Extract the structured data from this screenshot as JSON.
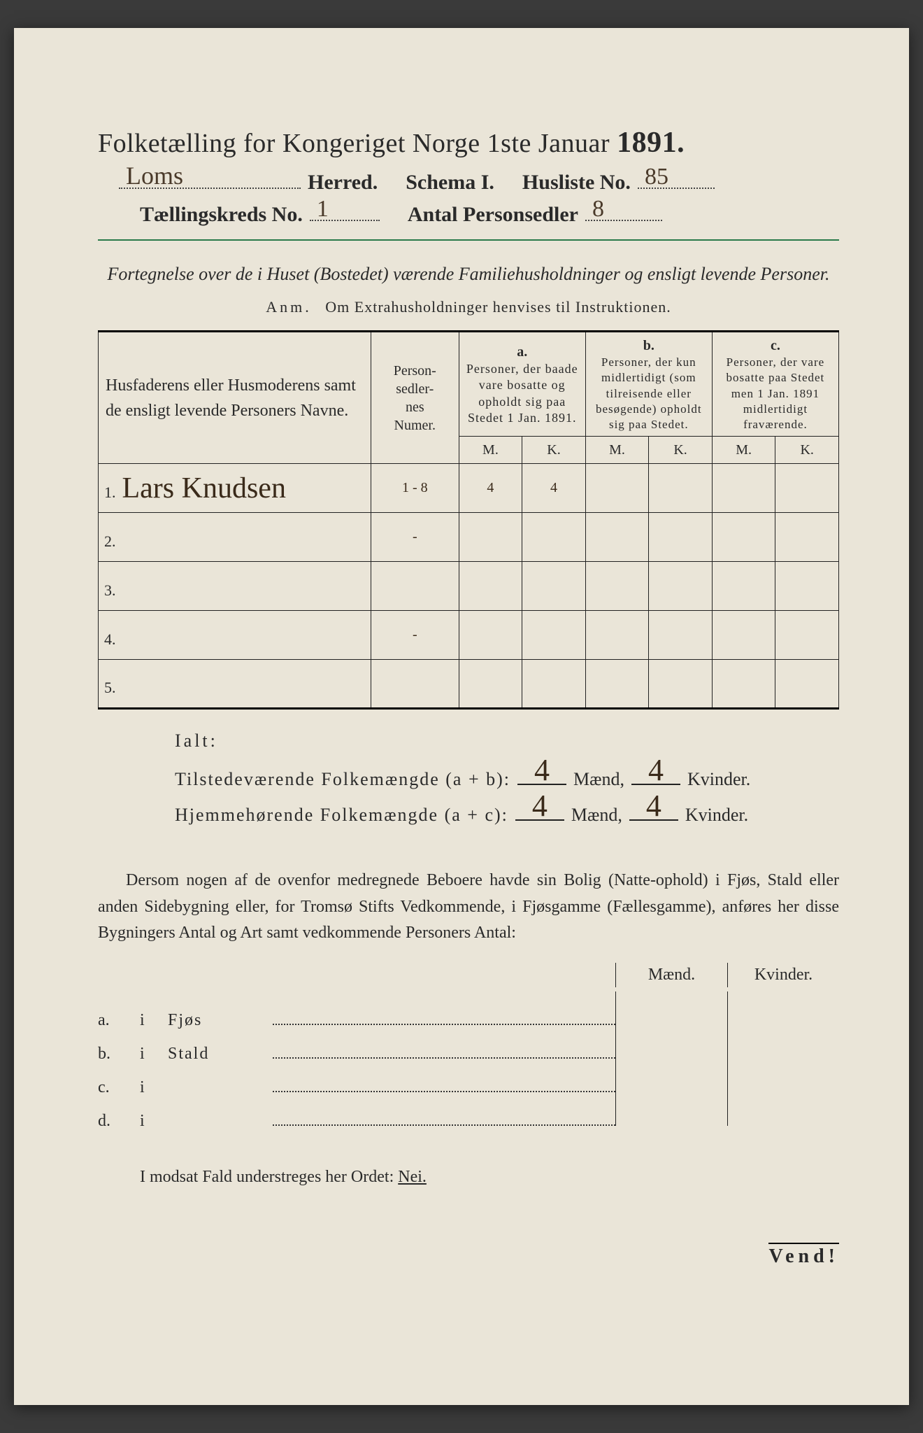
{
  "header": {
    "title_prefix": "Folketælling for Kongeriget Norge 1ste Januar",
    "year": "1891.",
    "herred_value": "Loms",
    "herred_label": "Herred.",
    "schema_label": "Schema I.",
    "husliste_label": "Husliste No.",
    "husliste_value": "85",
    "kreds_label": "Tællingskreds No.",
    "kreds_value": "1",
    "antal_label": "Antal Personsedler",
    "antal_value": "8"
  },
  "subtitle": "Fortegnelse over de i Huset (Bostedet) værende Familiehusholdninger og ensligt levende Personer.",
  "anm_lead": "Anm.",
  "anm_text": "Om Extrahusholdninger henvises til Instruktionen.",
  "table": {
    "col_names": "Husfaderens eller Husmoderens samt de ensligt levende Personers Navne.",
    "col_num": "Person-\nsedler-\nnes\nNumer.",
    "col_a_label": "a.",
    "col_a": "Personer, der baade vare bosatte og opholdt sig paa Stedet 1 Jan. 1891.",
    "col_b_label": "b.",
    "col_b": "Personer, der kun midlertidigt (som tilreisende eller besøgende) opholdt sig paa Stedet.",
    "col_c_label": "c.",
    "col_c": "Personer, der vare bosatte paa Stedet men 1 Jan. 1891 midlertidigt fraværende.",
    "mk_m": "M.",
    "mk_k": "K.",
    "rows": [
      {
        "n": "1.",
        "name": "Lars Knudsen",
        "num": "1 - 8",
        "a_m": "4",
        "a_k": "4",
        "b_m": "",
        "b_k": "",
        "c_m": "",
        "c_k": ""
      },
      {
        "n": "2.",
        "name": "",
        "num": "-",
        "a_m": "",
        "a_k": "",
        "b_m": "",
        "b_k": "",
        "c_m": "",
        "c_k": ""
      },
      {
        "n": "3.",
        "name": "",
        "num": "",
        "a_m": "",
        "a_k": "",
        "b_m": "",
        "b_k": "",
        "c_m": "",
        "c_k": ""
      },
      {
        "n": "4.",
        "name": "",
        "num": "-",
        "a_m": "",
        "a_k": "",
        "b_m": "",
        "b_k": "",
        "c_m": "",
        "c_k": ""
      },
      {
        "n": "5.",
        "name": "",
        "num": "",
        "a_m": "",
        "a_k": "",
        "b_m": "",
        "b_k": "",
        "c_m": "",
        "c_k": ""
      }
    ]
  },
  "totals": {
    "ialt": "Ialt:",
    "line1_label": "Tilstedeværende Folkemængde (a + b):",
    "line2_label": "Hjemmehørende Folkemængde (a + c):",
    "maend": "Mænd,",
    "kvinder": "Kvinder.",
    "l1_m": "4",
    "l1_k": "4",
    "l2_m": "4",
    "l2_k": "4"
  },
  "para": "Dersom nogen af de ovenfor medregnede Beboere havde sin Bolig (Natte-ophold) i Fjøs, Stald eller anden Sidebygning eller, for Tromsø Stifts Vedkommende, i Fjøsgamme (Fællesgamme), anføres her disse Bygningers Antal og Art samt vedkommende Personers Antal:",
  "bldg": {
    "h_maend": "Mænd.",
    "h_kvinder": "Kvinder.",
    "rows": [
      {
        "lbl": "a.",
        "i": "i",
        "place": "Fjøs"
      },
      {
        "lbl": "b.",
        "i": "i",
        "place": "Stald"
      },
      {
        "lbl": "c.",
        "i": "i",
        "place": ""
      },
      {
        "lbl": "d.",
        "i": "i",
        "place": ""
      }
    ]
  },
  "nei_text": "I modsat Fald understreges her Ordet:",
  "nei_word": "Nei.",
  "vend": "Vend!",
  "colors": {
    "paper": "#eae5d8",
    "ink": "#2a2a2a",
    "hand": "#3a2a1a",
    "rule_green": "#2a7a4a"
  }
}
